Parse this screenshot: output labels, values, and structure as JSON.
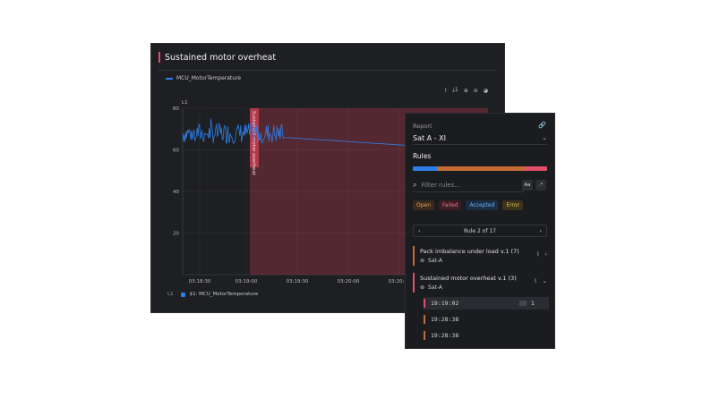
{
  "panel": {
    "title": "Sustained motor overheat",
    "legend_label": "MCU_MotorTemperature",
    "toolbar": {
      "chart_icon": "line-chart-icon",
      "download_label": "1",
      "download_icon": "download-icon",
      "zoom_in_icon": "zoom-in-icon",
      "zoom_out_icon": "zoom-out-icon",
      "palette_icon": "palette-icon"
    },
    "axis_name": "L1",
    "bottom_legend": {
      "axis": "L1",
      "label": "$1: MCU_MotorTemperature"
    },
    "region_label": "Sustained motor overheat"
  },
  "chart_data": {
    "type": "line",
    "series": [
      {
        "name": "MCU_MotorTemperature",
        "color": "#2d7de6"
      }
    ],
    "ylim": [
      0,
      80
    ],
    "yticks": [
      "80",
      "60",
      "40",
      "20"
    ],
    "xticks": [
      "03:18:30",
      "03:19:00",
      "03:19:30",
      "03:20:00",
      "03:20:30"
    ],
    "highlight_color": "#c23c4f",
    "grid": true
  },
  "side": {
    "report_label": "Report",
    "report_value": "Sat A - XI",
    "link_icon": "link-icon",
    "chevron_icon": "chevron-down-icon",
    "rules_heading": "Rules",
    "rules_bar": [
      {
        "frac": 0.18,
        "color": "#2d7de6"
      },
      {
        "frac": 0.65,
        "color": "#c46c34"
      },
      {
        "frac": 0.17,
        "color": "#e0506a"
      }
    ],
    "filter_placeholder": "Filter rules...",
    "case_button": "Aa",
    "regex_button": ".*",
    "chips": [
      {
        "label": "Open",
        "bg": "#3a2a1c",
        "fg": "#e7a15a"
      },
      {
        "label": "Failed",
        "bg": "#3b1e25",
        "fg": "#f07088"
      },
      {
        "label": "Accepted",
        "bg": "#1c2e44",
        "fg": "#6fb0f2"
      },
      {
        "label": "Error",
        "bg": "#3b331c",
        "fg": "#e8c45a"
      }
    ],
    "pager": {
      "prev": "‹",
      "label": "Rule 2 of 17",
      "next": "›"
    },
    "rules": [
      {
        "name": "Pack imbalance under load v.1 (7)",
        "subject": "Sat-A",
        "bar": "#c46c34",
        "expand": "›"
      },
      {
        "name": "Sustained motor overheat v.1 (3)",
        "subject": "Sat-A",
        "bar": "#e0506a",
        "expand": "⌄"
      }
    ],
    "events": [
      {
        "time": "19:19:02",
        "count": "1",
        "bar": "#e0506a"
      },
      {
        "time": "19:28:38",
        "bar": "#c46c34"
      },
      {
        "time": "19:28:38",
        "bar": "#c46c34"
      }
    ]
  }
}
